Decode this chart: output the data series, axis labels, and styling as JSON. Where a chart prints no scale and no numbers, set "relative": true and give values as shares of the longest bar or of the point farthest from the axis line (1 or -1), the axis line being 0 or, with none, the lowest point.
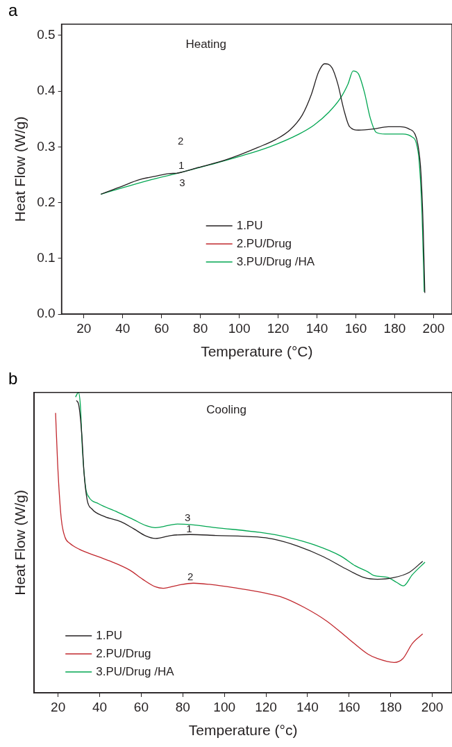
{
  "chart_data": [
    {
      "type": "line",
      "title": "a",
      "xlabel": "Temperature (°C)",
      "ylabel": "Heat Flow (W/g)",
      "xlim": [
        8.5,
        209.5
      ],
      "xticks": [
        20,
        40,
        60,
        80,
        100,
        120,
        140,
        160,
        180,
        200
      ],
      "ylim": [
        0,
        0.52
      ],
      "yticks": [
        {
          "value": 0,
          "label": "0.0"
        },
        0.1,
        0.2,
        0.3,
        0.4,
        0.5
      ],
      "grid": false,
      "legend": "bottom",
      "annotations": [
        "Heating",
        "2",
        "1",
        "3"
      ],
      "series": [
        {
          "name": "1.PU",
          "color": "#231f20",
          "x": [
            28.7,
            34.8,
            39.4,
            48.5,
            57.7,
            63.8,
            68.4,
            79,
            89.7,
            100.4,
            109.6,
            118.7,
            126.3,
            132.4,
            137,
            140.8,
            143.9,
            147.7,
            150.7,
            153.8,
            156.8,
            161.4,
            169,
            176.7,
            182.8,
            187.4,
            190.4,
            191.9,
            193.5,
            194.7,
            195.5
          ],
          "values": [
            0.215,
            0.223,
            0.229,
            0.241,
            0.248,
            0.252,
            0.253,
            0.263,
            0.273,
            0.286,
            0.299,
            0.313,
            0.331,
            0.357,
            0.393,
            0.434,
            0.449,
            0.442,
            0.413,
            0.367,
            0.336,
            0.33,
            0.332,
            0.336,
            0.336,
            0.332,
            0.323,
            0.305,
            0.254,
            0.151,
            0.038
          ]
        },
        {
          "name": "2.PU/Drug",
          "color": "#c1272d"
        },
        {
          "name": "3.PU/Drug /HA",
          "color": "#00a651",
          "x": [
            28.7,
            39.4,
            54.6,
            69.9,
            85.1,
            100.4,
            115.6,
            130.8,
            138.5,
            146.1,
            152.2,
            156,
            158.6,
            161.3,
            164.4,
            167.4,
            170.5,
            175,
            184.2,
            188.8,
            191,
            192.6,
            194.1,
            195.2
          ],
          "values": [
            0.215,
            0.226,
            0.241,
            0.254,
            0.268,
            0.283,
            0.3,
            0.323,
            0.339,
            0.362,
            0.388,
            0.413,
            0.436,
            0.431,
            0.398,
            0.352,
            0.326,
            0.323,
            0.323,
            0.318,
            0.308,
            0.274,
            0.177,
            0.04
          ]
        }
      ]
    },
    {
      "type": "line",
      "title": "b",
      "xlabel": "Temperature (°c)",
      "ylabel": "Heat Flow (W/g)",
      "relative": true,
      "tick_labels": "x",
      "xlim": [
        8.5,
        209.5
      ],
      "xticks": [
        20,
        40,
        60,
        80,
        100,
        120,
        140,
        160,
        180,
        200
      ],
      "grid": false,
      "legend": "bottom left",
      "annotations": [
        "Cooling",
        "3",
        "1",
        "2"
      ],
      "series": [
        {
          "name": "1.PU",
          "color": "#231f20",
          "x": [
            28.8,
            29.9,
            31.4,
            32.5,
            34,
            36.3,
            42.4,
            50.1,
            56.2,
            62.3,
            66.8,
            74.5,
            83.6,
            95.8,
            115.7,
            123.3,
            135.5,
            147.7,
            158.4,
            167.5,
            173.6,
            181.2,
            188.9,
            195.4
          ],
          "values": [
            0.973,
            0.96,
            0.861,
            0.731,
            0.642,
            0.612,
            0.587,
            0.57,
            0.547,
            0.522,
            0.514,
            0.524,
            0.527,
            0.524,
            0.519,
            0.512,
            0.488,
            0.453,
            0.413,
            0.383,
            0.378,
            0.383,
            0.401,
            0.438
          ]
        },
        {
          "name": "2.PU/Drug",
          "color": "#c1272d",
          "x": [
            18.8,
            19.8,
            21.5,
            23.4,
            25.6,
            30.2,
            39.4,
            47,
            54.6,
            60.7,
            66.8,
            70.6,
            77.5,
            85.1,
            92.8,
            108,
            120.2,
            127.9,
            138.5,
            149.2,
            159.9,
            169,
            173.6,
            181.7,
            185.9,
            190.4,
            195.4
          ],
          "values": [
            0.932,
            0.761,
            0.582,
            0.517,
            0.498,
            0.478,
            0.453,
            0.433,
            0.408,
            0.378,
            0.353,
            0.348,
            0.358,
            0.365,
            0.361,
            0.346,
            0.331,
            0.318,
            0.284,
            0.239,
            0.179,
            0.129,
            0.114,
            0.101,
            0.114,
            0.164,
            0.196
          ]
        },
        {
          "name": "3.PU/Drug /HA",
          "color": "#00a651",
          "x": [
            28.4,
            29.8,
            30.7,
            31.7,
            33.3,
            34.8,
            39.4,
            48.5,
            56.2,
            62.3,
            66.8,
            77.5,
            83.6,
            95.8,
            117.2,
            130.9,
            143.1,
            156.1,
            162.9,
            169,
            172.1,
            178.2,
            182.8,
            186.1,
            190.4,
            196.5
          ],
          "values": [
            0.985,
            1,
            0.96,
            0.811,
            0.682,
            0.652,
            0.63,
            0.602,
            0.577,
            0.557,
            0.55,
            0.562,
            0.56,
            0.55,
            0.534,
            0.517,
            0.493,
            0.455,
            0.423,
            0.403,
            0.39,
            0.385,
            0.368,
            0.356,
            0.393,
            0.435
          ]
        }
      ]
    }
  ]
}
